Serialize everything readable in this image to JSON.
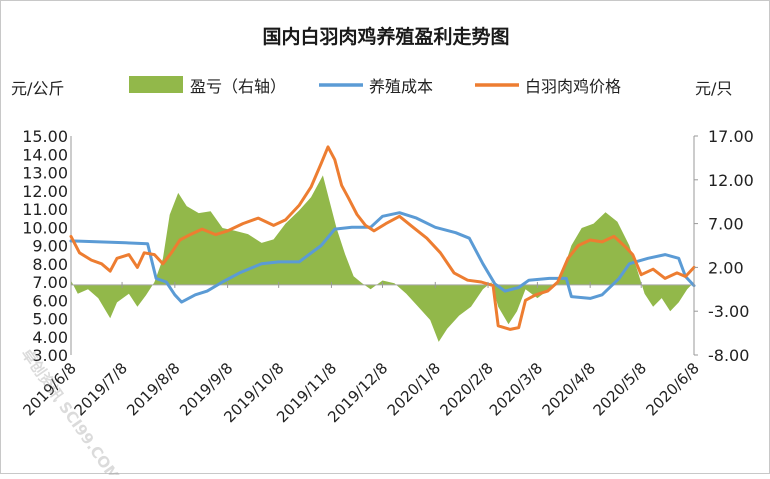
{
  "chart_data": {
    "type": "line",
    "title": "国内白羽肉鸡养殖盈利走势图",
    "left_unit": "元/公斤",
    "right_unit": "元/只",
    "legend": {
      "placement": "top",
      "items": [
        {
          "key": "profit",
          "label": "盈亏（右轴）",
          "color": "#92b84a",
          "shape": "area"
        },
        {
          "key": "cost",
          "label": "养殖成本",
          "color": "#5b9bd5",
          "shape": "line"
        },
        {
          "key": "price",
          "label": "白羽肉鸡价格",
          "color": "#ed7d31",
          "shape": "line"
        }
      ]
    },
    "x_axis": {
      "start": "2019/6/8",
      "end": "2020/6/8",
      "tick_labels": [
        "2019/6/8",
        "2019/7/8",
        "2019/8/8",
        "2019/9/8",
        "2019/10/8",
        "2019/11/8",
        "2019/12/8",
        "2020/1/8",
        "2020/2/8",
        "2020/3/8",
        "2020/4/8",
        "2020/5/8",
        "2020/6/8"
      ]
    },
    "y_left": {
      "min": 3.0,
      "max": 15.0,
      "step": 1.0,
      "tick_labels": [
        "15.00",
        "14.00",
        "13.00",
        "12.00",
        "11.00",
        "10.00",
        "9.00",
        "8.00",
        "7.00",
        "6.00",
        "5.00",
        "4.00",
        "3.00"
      ]
    },
    "y_right": {
      "min": -8.0,
      "max": 17.0,
      "step": 5.0,
      "tick_labels": [
        "17.00",
        "12.00",
        "7.00",
        "2.00",
        "-3.00",
        "-8.00"
      ]
    },
    "gridlines": false,
    "series": [
      {
        "name": "养殖成本",
        "key": "cost",
        "axis": "left",
        "color": "#5b9bd5",
        "points": [
          [
            "2019/6/8",
            9.25
          ],
          [
            "2019/6/25",
            9.2
          ],
          [
            "2019/7/10",
            9.15
          ],
          [
            "2019/7/23",
            9.1
          ],
          [
            "2019/7/28",
            7.2
          ],
          [
            "2019/8/3",
            7.0
          ],
          [
            "2019/8/8",
            6.3
          ],
          [
            "2019/8/12",
            5.9
          ],
          [
            "2019/8/20",
            6.3
          ],
          [
            "2019/8/27",
            6.5
          ],
          [
            "2019/9/5",
            7.0
          ],
          [
            "2019/9/15",
            7.5
          ],
          [
            "2019/9/28",
            8.0
          ],
          [
            "2019/10/8",
            8.1
          ],
          [
            "2019/10/20",
            8.1
          ],
          [
            "2019/11/2",
            9.0
          ],
          [
            "2019/11/10",
            9.9
          ],
          [
            "2019/11/20",
            10.0
          ],
          [
            "2019/12/1",
            10.0
          ],
          [
            "2019/12/8",
            10.6
          ],
          [
            "2019/12/18",
            10.8
          ],
          [
            "2019/12/28",
            10.5
          ],
          [
            "2020/1/8",
            10.0
          ],
          [
            "2020/1/20",
            9.7
          ],
          [
            "2020/1/28",
            9.4
          ],
          [
            "2020/2/5",
            8.0
          ],
          [
            "2020/2/12",
            6.9
          ],
          [
            "2020/2/18",
            6.5
          ],
          [
            "2020/2/26",
            6.7
          ],
          [
            "2020/3/3",
            7.1
          ],
          [
            "2020/3/15",
            7.2
          ],
          [
            "2020/3/25",
            7.2
          ],
          [
            "2020/3/28",
            6.2
          ],
          [
            "2020/4/8",
            6.1
          ],
          [
            "2020/4/15",
            6.3
          ],
          [
            "2020/4/25",
            7.2
          ],
          [
            "2020/5/1",
            8.0
          ],
          [
            "2020/5/12",
            8.3
          ],
          [
            "2020/5/22",
            8.5
          ],
          [
            "2020/5/30",
            8.3
          ],
          [
            "2020/6/3",
            7.3
          ],
          [
            "2020/6/8",
            6.8
          ]
        ]
      },
      {
        "name": "白羽肉鸡价格",
        "key": "price",
        "axis": "left",
        "color": "#ed7d31",
        "points": [
          [
            "2019/6/8",
            9.5
          ],
          [
            "2019/6/13",
            8.6
          ],
          [
            "2019/6/20",
            8.2
          ],
          [
            "2019/6/26",
            8.0
          ],
          [
            "2019/7/1",
            7.6
          ],
          [
            "2019/7/5",
            8.3
          ],
          [
            "2019/7/12",
            8.5
          ],
          [
            "2019/7/17",
            7.8
          ],
          [
            "2019/7/21",
            8.6
          ],
          [
            "2019/7/27",
            8.5
          ],
          [
            "2019/8/1",
            8.0
          ],
          [
            "2019/8/6",
            8.6
          ],
          [
            "2019/8/11",
            9.3
          ],
          [
            "2019/8/17",
            9.6
          ],
          [
            "2019/8/24",
            9.9
          ],
          [
            "2019/9/1",
            9.6
          ],
          [
            "2019/9/8",
            9.8
          ],
          [
            "2019/9/17",
            10.2
          ],
          [
            "2019/9/26",
            10.5
          ],
          [
            "2019/10/5",
            10.1
          ],
          [
            "2019/10/12",
            10.4
          ],
          [
            "2019/10/20",
            11.2
          ],
          [
            "2019/10/27",
            12.2
          ],
          [
            "2019/11/2",
            13.5
          ],
          [
            "2019/11/6",
            14.4
          ],
          [
            "2019/11/10",
            13.7
          ],
          [
            "2019/11/14",
            12.3
          ],
          [
            "2019/11/18",
            11.6
          ],
          [
            "2019/11/23",
            10.7
          ],
          [
            "2019/11/28",
            10.1
          ],
          [
            "2019/12/3",
            9.8
          ],
          [
            "2019/12/10",
            10.2
          ],
          [
            "2019/12/18",
            10.6
          ],
          [
            "2019/12/26",
            10.0
          ],
          [
            "2020/1/3",
            9.4
          ],
          [
            "2020/1/11",
            8.6
          ],
          [
            "2020/1/19",
            7.5
          ],
          [
            "2020/1/27",
            7.1
          ],
          [
            "2020/2/4",
            7.0
          ],
          [
            "2020/2/11",
            6.8
          ],
          [
            "2020/2/14",
            4.6
          ],
          [
            "2020/2/21",
            4.4
          ],
          [
            "2020/2/26",
            4.5
          ],
          [
            "2020/3/1",
            6.0
          ],
          [
            "2020/3/7",
            6.3
          ],
          [
            "2020/3/14",
            6.5
          ],
          [
            "2020/3/20",
            7.0
          ],
          [
            "2020/3/26",
            8.3
          ],
          [
            "2020/4/1",
            9.0
          ],
          [
            "2020/4/8",
            9.3
          ],
          [
            "2020/4/15",
            9.2
          ],
          [
            "2020/4/22",
            9.5
          ],
          [
            "2020/4/29",
            8.9
          ],
          [
            "2020/5/3",
            8.5
          ],
          [
            "2020/5/8",
            7.4
          ],
          [
            "2020/5/15",
            7.7
          ],
          [
            "2020/5/22",
            7.2
          ],
          [
            "2020/5/29",
            7.5
          ],
          [
            "2020/6/3",
            7.3
          ],
          [
            "2020/6/8",
            7.8
          ]
        ]
      },
      {
        "name": "盈亏（右轴）",
        "key": "profit",
        "axis": "right",
        "color": "#92b84a",
        "points": [
          [
            "2019/6/8",
            0.5
          ],
          [
            "2019/6/12",
            -1.0
          ],
          [
            "2019/6/18",
            -0.5
          ],
          [
            "2019/6/24",
            -1.5
          ],
          [
            "2019/7/1",
            -3.8
          ],
          [
            "2019/7/5",
            -2.0
          ],
          [
            "2019/7/12",
            -1.0
          ],
          [
            "2019/7/17",
            -2.5
          ],
          [
            "2019/7/22",
            -1.2
          ],
          [
            "2019/7/27",
            0.3
          ],
          [
            "2019/8/1",
            3.0
          ],
          [
            "2019/8/5",
            8.0
          ],
          [
            "2019/8/10",
            10.5
          ],
          [
            "2019/8/15",
            9.0
          ],
          [
            "2019/8/22",
            8.2
          ],
          [
            "2019/8/29",
            8.4
          ],
          [
            "2019/9/5",
            6.5
          ],
          [
            "2019/9/12",
            6.2
          ],
          [
            "2019/9/20",
            5.8
          ],
          [
            "2019/9/28",
            4.8
          ],
          [
            "2019/10/5",
            5.2
          ],
          [
            "2019/10/12",
            7.0
          ],
          [
            "2019/10/20",
            8.5
          ],
          [
            "2019/10/27",
            10.0
          ],
          [
            "2019/11/3",
            12.5
          ],
          [
            "2019/11/7",
            9.5
          ],
          [
            "2019/11/11",
            6.5
          ],
          [
            "2019/11/16",
            3.5
          ],
          [
            "2019/11/21",
            1.0
          ],
          [
            "2019/11/26",
            0.2
          ],
          [
            "2019/12/1",
            -0.5
          ],
          [
            "2019/12/8",
            0.5
          ],
          [
            "2019/12/15",
            0.2
          ],
          [
            "2019/12/22",
            -1.0
          ],
          [
            "2019/12/29",
            -2.5
          ],
          [
            "2020/1/5",
            -4.0
          ],
          [
            "2020/1/10",
            -6.5
          ],
          [
            "2020/1/15",
            -5.0
          ],
          [
            "2020/1/22",
            -3.5
          ],
          [
            "2020/1/29",
            -2.5
          ],
          [
            "2020/2/5",
            -0.5
          ],
          [
            "2020/2/10",
            0.3
          ],
          [
            "2020/2/14",
            -2.5
          ],
          [
            "2020/2/20",
            -4.5
          ],
          [
            "2020/2/25",
            -3.0
          ],
          [
            "2020/3/1",
            -0.5
          ],
          [
            "2020/3/8",
            -1.5
          ],
          [
            "2020/3/15",
            -0.5
          ],
          [
            "2020/3/22",
            1.0
          ],
          [
            "2020/3/28",
            4.5
          ],
          [
            "2020/4/3",
            6.5
          ],
          [
            "2020/4/10",
            7.0
          ],
          [
            "2020/4/17",
            8.3
          ],
          [
            "2020/4/24",
            7.2
          ],
          [
            "2020/5/1",
            4.5
          ],
          [
            "2020/5/6",
            1.5
          ],
          [
            "2020/5/10",
            -1.0
          ],
          [
            "2020/5/15",
            -2.5
          ],
          [
            "2020/5/20",
            -1.5
          ],
          [
            "2020/5/25",
            -3.0
          ],
          [
            "2020/5/30",
            -2.0
          ],
          [
            "2020/6/4",
            -0.5
          ],
          [
            "2020/6/8",
            0.3
          ]
        ]
      }
    ]
  },
  "watermark": "卓创资讯 SCI99.COM"
}
